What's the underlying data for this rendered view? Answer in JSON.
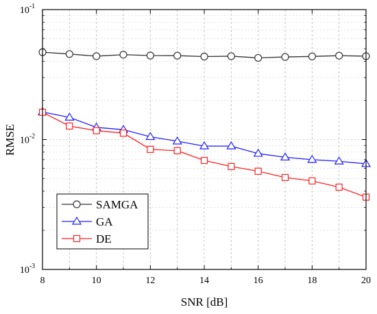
{
  "chart_data": {
    "type": "line",
    "xlabel": "SNR [dB]",
    "ylabel": "RMSE",
    "y_scale": "log",
    "xlim": [
      8,
      20
    ],
    "ylim": [
      0.001,
      0.1
    ],
    "grid": true,
    "legend_position": "bottom-left",
    "x": [
      8,
      9,
      10,
      11,
      12,
      13,
      14,
      15,
      16,
      17,
      18,
      19,
      20
    ],
    "x_ticks": [
      "8",
      "10",
      "12",
      "14",
      "16",
      "18",
      "20"
    ],
    "y_ticks": [
      {
        "base": "10",
        "exp": "-1",
        "value": 0.1
      },
      {
        "base": "10",
        "exp": "-2",
        "value": 0.01
      },
      {
        "base": "10",
        "exp": "-3",
        "value": 0.001
      }
    ],
    "series": [
      {
        "name": "SAMGA",
        "color": "#333333",
        "marker": "circle",
        "values": [
          0.047,
          0.0455,
          0.0438,
          0.045,
          0.0443,
          0.0442,
          0.0435,
          0.0438,
          0.0425,
          0.0432,
          0.0436,
          0.0442,
          0.0438
        ]
      },
      {
        "name": "GA",
        "color": "#1f1fff",
        "marker": "triangle",
        "values": [
          0.0163,
          0.0148,
          0.0124,
          0.0119,
          0.0105,
          0.0097,
          0.0089,
          0.0089,
          0.0078,
          0.0073,
          0.007,
          0.0068,
          0.0065
        ]
      },
      {
        "name": "DE",
        "color": "#ff2020",
        "marker": "square",
        "values": [
          0.0162,
          0.0127,
          0.0117,
          0.0112,
          0.0084,
          0.0082,
          0.0069,
          0.0062,
          0.0057,
          0.0051,
          0.0048,
          0.0043,
          0.0036
        ]
      }
    ]
  }
}
